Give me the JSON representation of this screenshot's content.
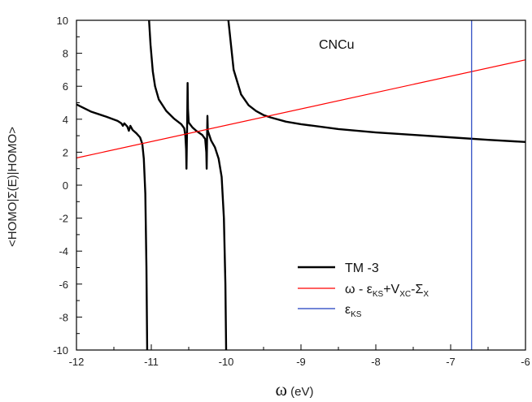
{
  "chart_data": {
    "type": "line",
    "annotation": "CNCu",
    "xlabel_symbol": "ω",
    "xlabel_unit": " (eV)",
    "ylabel": "<HOMO|Σ(E)|HOMO>",
    "xlim": [
      -12,
      -6
    ],
    "ylim": [
      -10,
      10
    ],
    "xticks": [
      -12,
      -11,
      -10,
      -9,
      -8,
      -7,
      -6
    ],
    "yticks": [
      -10,
      -8,
      -6,
      -4,
      -2,
      0,
      2,
      4,
      6,
      8,
      10
    ],
    "grid": false,
    "legend_position": "bottom-right",
    "legend": [
      {
        "text": "TM -3"
      },
      {
        "text": "ω - ε",
        "sub1": "KS",
        "mid": "+V",
        "sub2": "XC",
        "mid2": "-Σ",
        "sub3": "X"
      },
      {
        "text": "ε",
        "sub1": "KS"
      }
    ],
    "series": [
      {
        "color": "#000000",
        "segments": [
          [
            [
              -12.0,
              4.9
            ],
            [
              -11.8,
              4.45
            ],
            [
              -11.6,
              4.15
            ],
            [
              -11.45,
              3.9
            ],
            [
              -11.4,
              3.75
            ],
            [
              -11.38,
              3.6
            ],
            [
              -11.36,
              3.75
            ],
            [
              -11.32,
              3.55
            ],
            [
              -11.3,
              3.3
            ],
            [
              -11.28,
              3.6
            ],
            [
              -11.25,
              3.35
            ],
            [
              -11.2,
              3.15
            ],
            [
              -11.15,
              2.9
            ],
            [
              -11.12,
              2.5
            ],
            [
              -11.1,
              1.6
            ],
            [
              -11.08,
              -0.5
            ],
            [
              -11.065,
              -5
            ],
            [
              -11.055,
              -10
            ]
          ],
          [
            [
              -11.03,
              10
            ],
            [
              -11.01,
              8.5
            ],
            [
              -10.98,
              6.9
            ],
            [
              -10.95,
              6.0
            ],
            [
              -10.9,
              5.2
            ],
            [
              -10.8,
              4.5
            ],
            [
              -10.7,
              4.05
            ],
            [
              -10.6,
              3.7
            ],
            [
              -10.56,
              3.45
            ],
            [
              -10.545,
              3.0
            ],
            [
              -10.535,
              2.2
            ],
            [
              -10.53,
              1.0
            ],
            [
              -10.525,
              2.6
            ],
            [
              -10.52,
              4.0
            ],
            [
              -10.515,
              6.2
            ],
            [
              -10.51,
              4.6
            ],
            [
              -10.5,
              3.8
            ],
            [
              -10.45,
              3.5
            ],
            [
              -10.4,
              3.3
            ],
            [
              -10.32,
              3.05
            ],
            [
              -10.28,
              2.8
            ],
            [
              -10.265,
              2.0
            ],
            [
              -10.26,
              1.0
            ],
            [
              -10.255,
              2.8
            ],
            [
              -10.25,
              4.2
            ],
            [
              -10.245,
              3.3
            ],
            [
              -10.2,
              2.7
            ],
            [
              -10.15,
              2.3
            ],
            [
              -10.1,
              1.6
            ],
            [
              -10.06,
              0.5
            ],
            [
              -10.03,
              -2.0
            ],
            [
              -10.01,
              -6.0
            ],
            [
              -10.0,
              -10
            ]
          ],
          [
            [
              -9.97,
              10
            ],
            [
              -9.9,
              7.0
            ],
            [
              -9.8,
              5.5
            ],
            [
              -9.7,
              4.85
            ],
            [
              -9.6,
              4.5
            ],
            [
              -9.5,
              4.25
            ],
            [
              -9.4,
              4.1
            ],
            [
              -9.2,
              3.85
            ],
            [
              -9.0,
              3.7
            ],
            [
              -8.5,
              3.4
            ],
            [
              -8.0,
              3.2
            ],
            [
              -7.5,
              3.05
            ],
            [
              -7.0,
              2.9
            ],
            [
              -6.5,
              2.75
            ],
            [
              -6.0,
              2.62
            ]
          ]
        ]
      },
      {
        "color": "#ff0000",
        "segments": [
          [
            [
              -12.0,
              1.65
            ],
            [
              -6.0,
              7.6
            ]
          ]
        ]
      },
      {
        "color": "#1f3fbf",
        "segments": [
          [
            [
              -6.72,
              -10
            ],
            [
              -6.72,
              10
            ]
          ]
        ]
      }
    ]
  }
}
